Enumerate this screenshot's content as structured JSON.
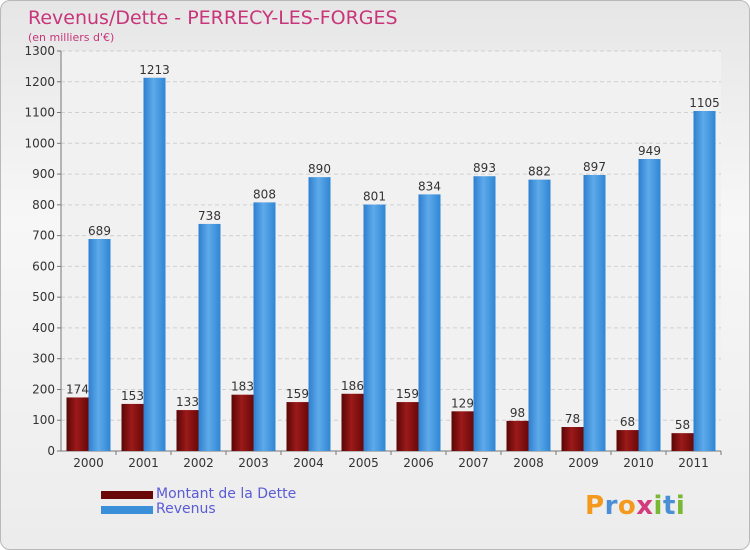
{
  "chart_data": {
    "type": "bar",
    "title": "Revenus/Dette - PERRECY-LES-FORGES",
    "subtitle": "(en milliers d'€)",
    "categories": [
      "2000",
      "2001",
      "2002",
      "2003",
      "2004",
      "2005",
      "2006",
      "2007",
      "2008",
      "2009",
      "2010",
      "2011"
    ],
    "series": [
      {
        "name": "Montant de la Dette",
        "values": [
          174,
          153,
          133,
          183,
          159,
          186,
          159,
          129,
          98,
          78,
          68,
          58
        ],
        "color": "#7a0c0c"
      },
      {
        "name": "Revenus",
        "values": [
          689,
          1213,
          738,
          808,
          890,
          801,
          834,
          893,
          882,
          897,
          949,
          1105
        ],
        "color": "#3a8fd8"
      }
    ],
    "yticks": [
      0,
      100,
      200,
      300,
      400,
      500,
      600,
      700,
      800,
      900,
      1000,
      1100,
      1200,
      1300
    ],
    "ylim": [
      0,
      1300
    ],
    "grid": true,
    "legend_position": "bottom-left"
  },
  "logo_text": "Proxiti"
}
